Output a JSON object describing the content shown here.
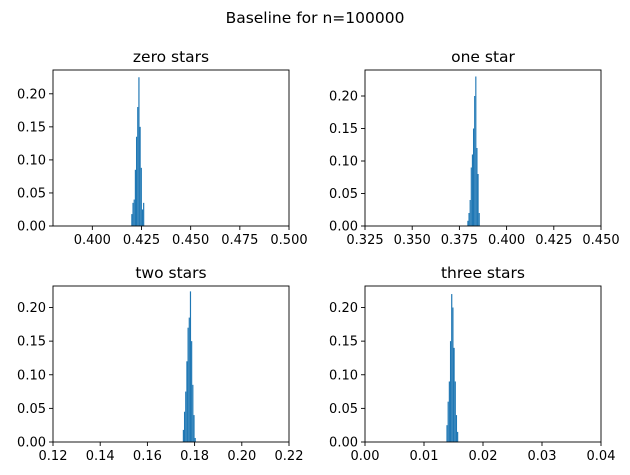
{
  "figure": {
    "suptitle": "Baseline for n=100000"
  },
  "colors": {
    "bar": "#1f77b4",
    "axis": "#000000",
    "background": "#ffffff"
  },
  "chart_data": [
    {
      "type": "bar",
      "title": "zero stars",
      "xlabel": "",
      "ylabel": "",
      "xlim": [
        0.38,
        0.5
      ],
      "ylim": [
        0,
        0.236
      ],
      "xticks": [
        0.4,
        0.425,
        0.45,
        0.475,
        0.5
      ],
      "xtick_labels": [
        "0.400",
        "0.425",
        "0.450",
        "0.475",
        "0.500"
      ],
      "yticks": [
        0.0,
        0.05,
        0.1,
        0.15,
        0.2
      ],
      "ytick_labels": [
        "0.00",
        "0.05",
        "0.10",
        "0.15",
        "0.20"
      ],
      "grid": false,
      "bin_width": 0.0006,
      "bins": [
        {
          "x": 0.4198,
          "y": 0.018
        },
        {
          "x": 0.4204,
          "y": 0.035
        },
        {
          "x": 0.421,
          "y": 0.04
        },
        {
          "x": 0.4216,
          "y": 0.085
        },
        {
          "x": 0.4222,
          "y": 0.135
        },
        {
          "x": 0.4228,
          "y": 0.18
        },
        {
          "x": 0.4234,
          "y": 0.225
        },
        {
          "x": 0.424,
          "y": 0.15
        },
        {
          "x": 0.4246,
          "y": 0.088
        },
        {
          "x": 0.4252,
          "y": 0.025
        },
        {
          "x": 0.4258,
          "y": 0.035
        }
      ]
    },
    {
      "type": "bar",
      "title": "one star",
      "xlabel": "",
      "ylabel": "",
      "xlim": [
        0.325,
        0.45
      ],
      "ylim": [
        0,
        0.24
      ],
      "xticks": [
        0.325,
        0.35,
        0.375,
        0.4,
        0.425,
        0.45
      ],
      "xtick_labels": [
        "0.325",
        "0.350",
        "0.375",
        "0.400",
        "0.425",
        "0.450"
      ],
      "yticks": [
        0.0,
        0.05,
        0.1,
        0.15,
        0.2
      ],
      "ytick_labels": [
        "0.00",
        "0.05",
        "0.10",
        "0.15",
        "0.20"
      ],
      "grid": false,
      "bin_width": 0.0006,
      "bins": [
        {
          "x": 0.3792,
          "y": 0.008
        },
        {
          "x": 0.3798,
          "y": 0.02
        },
        {
          "x": 0.3804,
          "y": 0.04
        },
        {
          "x": 0.381,
          "y": 0.09
        },
        {
          "x": 0.3816,
          "y": 0.11
        },
        {
          "x": 0.3822,
          "y": 0.15
        },
        {
          "x": 0.3828,
          "y": 0.2
        },
        {
          "x": 0.3834,
          "y": 0.23
        },
        {
          "x": 0.384,
          "y": 0.12
        },
        {
          "x": 0.3846,
          "y": 0.08
        },
        {
          "x": 0.3852,
          "y": 0.02
        }
      ]
    },
    {
      "type": "bar",
      "title": "two stars",
      "xlabel": "",
      "ylabel": "",
      "xlim": [
        0.12,
        0.22
      ],
      "ylim": [
        0,
        0.232
      ],
      "xticks": [
        0.12,
        0.14,
        0.16,
        0.18,
        0.2,
        0.22
      ],
      "xtick_labels": [
        "0.12",
        "0.14",
        "0.16",
        "0.18",
        "0.20",
        "0.22"
      ],
      "yticks": [
        0.0,
        0.05,
        0.1,
        0.15,
        0.2
      ],
      "ytick_labels": [
        "0.00",
        "0.05",
        "0.10",
        "0.15",
        "0.20"
      ],
      "grid": false,
      "bin_width": 0.0005,
      "bins": [
        {
          "x": 0.175,
          "y": 0.018
        },
        {
          "x": 0.1755,
          "y": 0.045
        },
        {
          "x": 0.176,
          "y": 0.075
        },
        {
          "x": 0.1765,
          "y": 0.12
        },
        {
          "x": 0.177,
          "y": 0.17
        },
        {
          "x": 0.1775,
          "y": 0.185
        },
        {
          "x": 0.178,
          "y": 0.224
        },
        {
          "x": 0.1785,
          "y": 0.15
        },
        {
          "x": 0.179,
          "y": 0.085
        },
        {
          "x": 0.1795,
          "y": 0.04
        },
        {
          "x": 0.18,
          "y": 0.006
        }
      ]
    },
    {
      "type": "bar",
      "title": "three stars",
      "xlabel": "",
      "ylabel": "",
      "xlim": [
        0.0,
        0.04
      ],
      "ylim": [
        0,
        0.232
      ],
      "xticks": [
        0.0,
        0.01,
        0.02,
        0.03,
        0.04
      ],
      "xtick_labels": [
        "0.00",
        "0.01",
        "0.02",
        "0.03",
        "0.04"
      ],
      "yticks": [
        0.0,
        0.05,
        0.1,
        0.15,
        0.2
      ],
      "ytick_labels": [
        "0.00",
        "0.05",
        "0.10",
        "0.15",
        "0.20"
      ],
      "grid": false,
      "bin_width": 0.0002,
      "bins": [
        {
          "x": 0.0138,
          "y": 0.025
        },
        {
          "x": 0.014,
          "y": 0.06
        },
        {
          "x": 0.0142,
          "y": 0.09
        },
        {
          "x": 0.0144,
          "y": 0.15
        },
        {
          "x": 0.0146,
          "y": 0.22
        },
        {
          "x": 0.0148,
          "y": 0.2
        },
        {
          "x": 0.015,
          "y": 0.14
        },
        {
          "x": 0.0152,
          "y": 0.09
        },
        {
          "x": 0.0154,
          "y": 0.04
        },
        {
          "x": 0.0156,
          "y": 0.015
        }
      ]
    }
  ]
}
